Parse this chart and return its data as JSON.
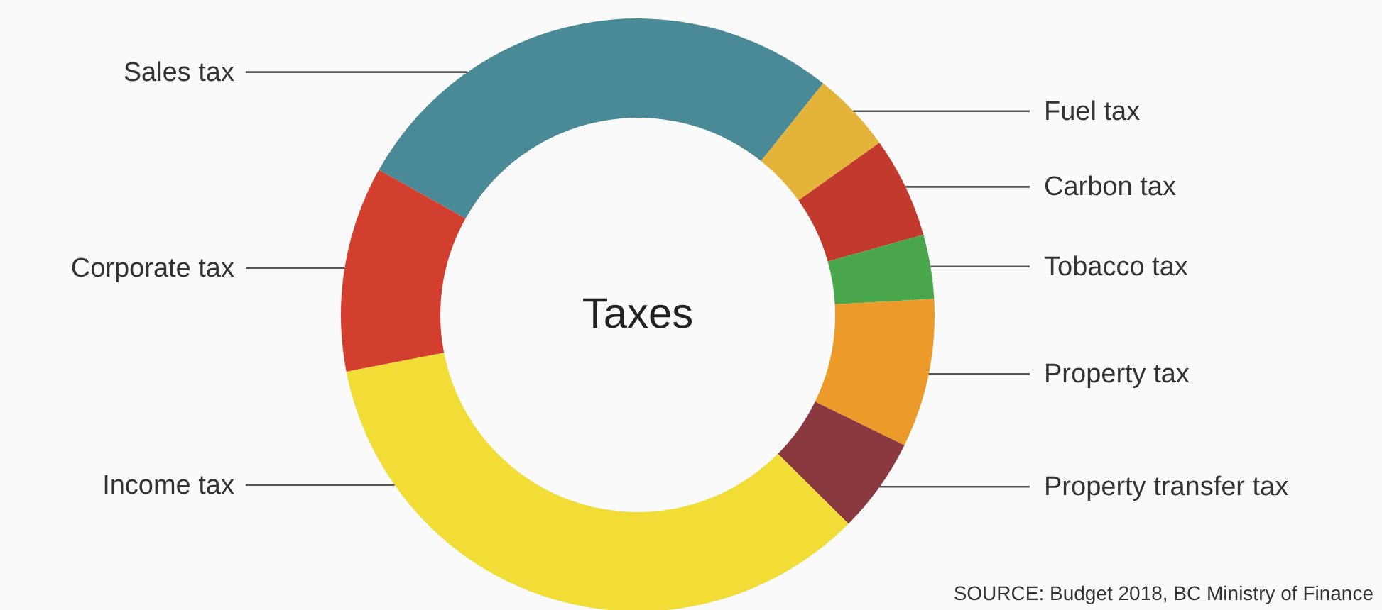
{
  "chart_data": {
    "type": "donut",
    "title": "Taxes",
    "categories": [
      "Sales tax",
      "Fuel tax",
      "Carbon tax",
      "Tobacco tax",
      "Property tax",
      "Property transfer tax",
      "Income tax",
      "Corporate tax"
    ],
    "values": [
      27.6,
      4.4,
      5.5,
      3.5,
      8.1,
      5.2,
      34.5,
      11.2
    ],
    "colors": [
      "#4a8a96",
      "#e3b33a",
      "#c23a2c",
      "#4aa64a",
      "#ec9a2a",
      "#8a3a3e",
      "#f2dc36",
      "#d23f2e"
    ],
    "annotations": [
      "SOURCE: Budget 2018, BC Ministry of Finance"
    ]
  }
}
